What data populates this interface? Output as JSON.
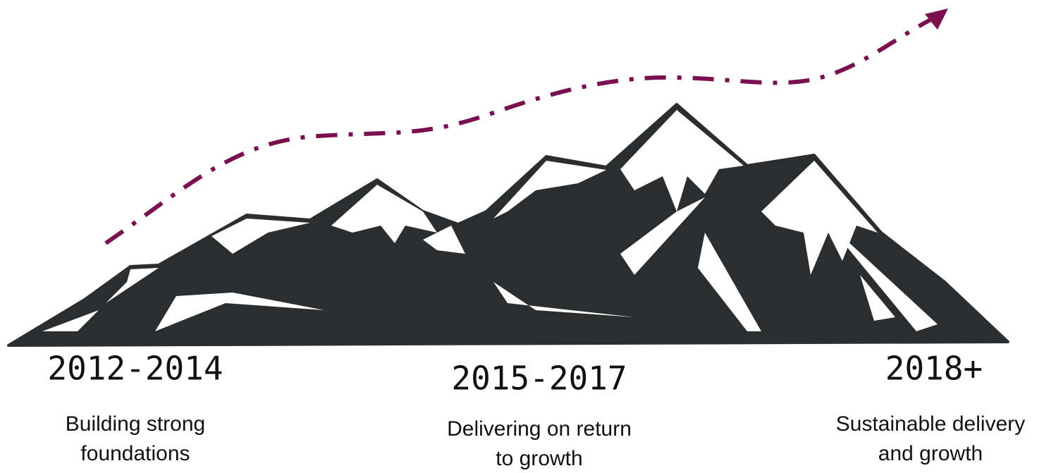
{
  "stages": [
    {
      "period": "2012-2014",
      "description": [
        "Building strong",
        "foundations"
      ]
    },
    {
      "period": "2015-2017",
      "description": [
        "Delivering on return",
        "to growth"
      ]
    },
    {
      "period": "2018+",
      "description": [
        "Sustainable delivery",
        "and growth"
      ]
    }
  ]
}
